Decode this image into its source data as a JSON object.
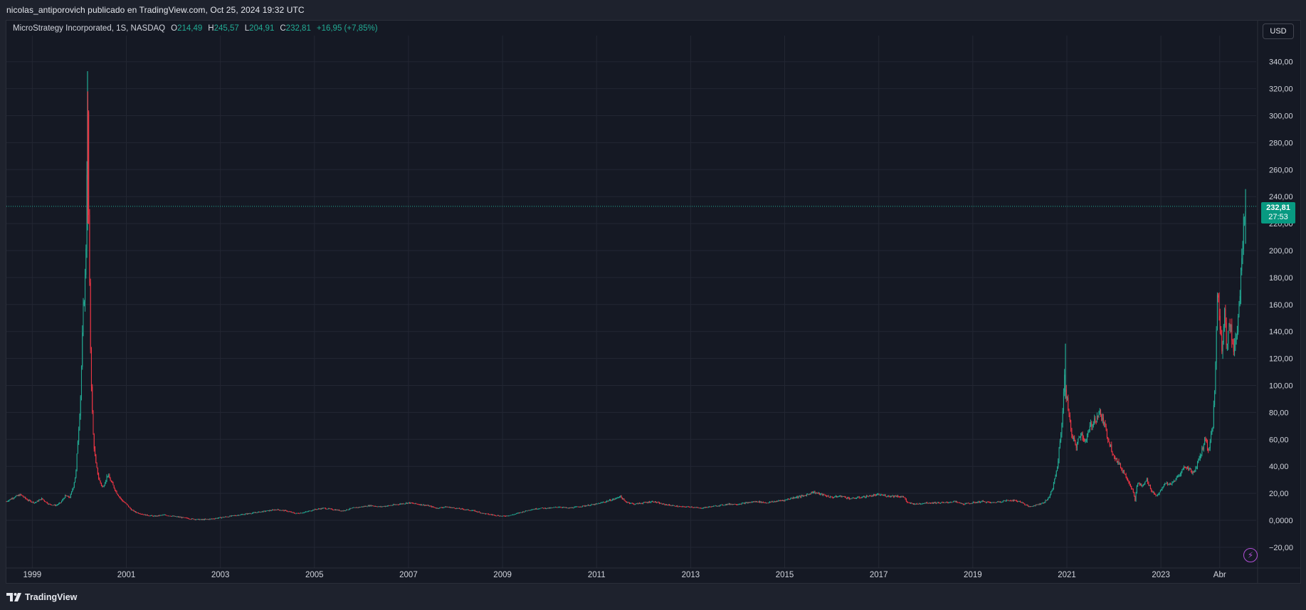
{
  "header": {
    "publish_text": "nicolas_antiporovich publicado en TradingView.com, Oct 25, 2024 19:32 UTC"
  },
  "legend": {
    "symbol": "MicroStrategy Incorporated, 1S, NASDAQ",
    "o_label": "O",
    "o_value": "214,49",
    "h_label": "H",
    "h_value": "245,57",
    "l_label": "L",
    "l_value": "204,91",
    "c_label": "C",
    "c_value": "232,81",
    "change": "+16,95 (+7,85%)"
  },
  "currency_button": "USD",
  "price_badge": {
    "last": "232,81",
    "countdown": "27:53"
  },
  "footer": {
    "brand": "TradingView"
  },
  "colors": {
    "up": "#22ab94",
    "down": "#f23645",
    "background": "#151924",
    "grid": "#232733",
    "axis_text": "#d1d4dc",
    "badge": "#089981",
    "accent_purple": "#b14fd6"
  },
  "icons": {
    "logo": "tradingview-logo-icon",
    "bolt": "lightning-bolt-icon"
  },
  "chart_data": {
    "type": "candlestick",
    "title": "MicroStrategy Incorporated, 1S, NASDAQ",
    "interval": "1S",
    "currency": "USD",
    "last_price": 232.81,
    "y_range": [
      -30,
      360
    ],
    "y_ticks": [
      "340,00",
      "320,00",
      "300,00",
      "280,00",
      "260,00",
      "240,00",
      "220,00",
      "200,00",
      "180,00",
      "160,00",
      "140,00",
      "120,00",
      "100,00",
      "80,00",
      "60,00",
      "40,00",
      "20,00",
      "0,0000",
      "−20,00"
    ],
    "y_tick_values": [
      340,
      320,
      300,
      280,
      260,
      240,
      220,
      200,
      180,
      160,
      140,
      120,
      100,
      80,
      60,
      40,
      20,
      0,
      -20
    ],
    "x_ticks": [
      "1999",
      "2001",
      "2003",
      "2005",
      "2007",
      "2009",
      "2011",
      "2013",
      "2015",
      "2017",
      "2019",
      "2021",
      "2023",
      "Abr"
    ],
    "x_tick_dates": [
      1999.0,
      2001.0,
      2003.0,
      2005.0,
      2007.0,
      2009.0,
      2011.0,
      2013.0,
      2015.0,
      2017.0,
      2019.0,
      2021.0,
      2023.0,
      2024.25
    ],
    "x_range": [
      1998.45,
      2024.95
    ],
    "grid": true,
    "price_path": [
      [
        1998.45,
        14
      ],
      [
        1998.6,
        17
      ],
      [
        1998.75,
        19
      ],
      [
        1998.9,
        15
      ],
      [
        1999.05,
        13
      ],
      [
        1999.2,
        16
      ],
      [
        1999.35,
        12
      ],
      [
        1999.5,
        11
      ],
      [
        1999.6,
        13
      ],
      [
        1999.7,
        18
      ],
      [
        1999.8,
        17
      ],
      [
        1999.88,
        26
      ],
      [
        1999.93,
        36
      ],
      [
        1999.97,
        60
      ],
      [
        2000.0,
        75
      ],
      [
        2000.03,
        95
      ],
      [
        2000.06,
        130
      ],
      [
        2000.09,
        160
      ],
      [
        2000.12,
        175
      ],
      [
        2000.15,
        215
      ],
      [
        2000.175,
        318
      ],
      [
        2000.2,
        225
      ],
      [
        2000.23,
        140
      ],
      [
        2000.27,
        85
      ],
      [
        2000.3,
        60
      ],
      [
        2000.35,
        42
      ],
      [
        2000.42,
        30
      ],
      [
        2000.5,
        24
      ],
      [
        2000.6,
        34
      ],
      [
        2000.7,
        27
      ],
      [
        2000.8,
        20
      ],
      [
        2000.9,
        15
      ],
      [
        2001.0,
        12
      ],
      [
        2001.1,
        8
      ],
      [
        2001.2,
        6
      ],
      [
        2001.4,
        4
      ],
      [
        2001.6,
        3
      ],
      [
        2001.8,
        4
      ],
      [
        2002.0,
        3
      ],
      [
        2002.2,
        2
      ],
      [
        2002.4,
        1
      ],
      [
        2002.6,
        0.5
      ],
      [
        2002.8,
        1
      ],
      [
        2003.0,
        2
      ],
      [
        2003.2,
        3
      ],
      [
        2003.4,
        4
      ],
      [
        2003.6,
        5
      ],
      [
        2003.8,
        6
      ],
      [
        2004.0,
        7
      ],
      [
        2004.2,
        8
      ],
      [
        2004.4,
        7
      ],
      [
        2004.6,
        5
      ],
      [
        2004.8,
        6
      ],
      [
        2005.0,
        8
      ],
      [
        2005.2,
        9
      ],
      [
        2005.4,
        8
      ],
      [
        2005.6,
        7
      ],
      [
        2005.8,
        9
      ],
      [
        2006.0,
        10
      ],
      [
        2006.2,
        11
      ],
      [
        2006.4,
        10
      ],
      [
        2006.6,
        11
      ],
      [
        2006.8,
        12
      ],
      [
        2007.0,
        13
      ],
      [
        2007.2,
        12
      ],
      [
        2007.4,
        11
      ],
      [
        2007.6,
        9
      ],
      [
        2007.8,
        10
      ],
      [
        2008.0,
        9
      ],
      [
        2008.2,
        8
      ],
      [
        2008.4,
        7
      ],
      [
        2008.6,
        5
      ],
      [
        2008.8,
        4
      ],
      [
        2009.0,
        3
      ],
      [
        2009.2,
        4
      ],
      [
        2009.4,
        6
      ],
      [
        2009.6,
        8
      ],
      [
        2009.8,
        9
      ],
      [
        2010.0,
        9
      ],
      [
        2010.2,
        10
      ],
      [
        2010.4,
        9
      ],
      [
        2010.6,
        10
      ],
      [
        2010.8,
        11
      ],
      [
        2011.0,
        12
      ],
      [
        2011.2,
        14
      ],
      [
        2011.4,
        16
      ],
      [
        2011.5,
        18
      ],
      [
        2011.6,
        14
      ],
      [
        2011.8,
        12
      ],
      [
        2012.0,
        13
      ],
      [
        2012.2,
        14
      ],
      [
        2012.4,
        12
      ],
      [
        2012.6,
        11
      ],
      [
        2012.8,
        10
      ],
      [
        2013.0,
        10
      ],
      [
        2013.2,
        9
      ],
      [
        2013.4,
        10
      ],
      [
        2013.6,
        11
      ],
      [
        2013.8,
        12
      ],
      [
        2014.0,
        12
      ],
      [
        2014.2,
        13
      ],
      [
        2014.4,
        14
      ],
      [
        2014.6,
        13
      ],
      [
        2014.8,
        14
      ],
      [
        2015.0,
        15
      ],
      [
        2015.2,
        17
      ],
      [
        2015.4,
        18
      ],
      [
        2015.6,
        21
      ],
      [
        2015.8,
        19
      ],
      [
        2016.0,
        17
      ],
      [
        2016.2,
        18
      ],
      [
        2016.4,
        16
      ],
      [
        2016.6,
        17
      ],
      [
        2016.8,
        18
      ],
      [
        2017.0,
        19
      ],
      [
        2017.2,
        18
      ],
      [
        2017.4,
        18
      ],
      [
        2017.55,
        17
      ],
      [
        2017.6,
        13
      ],
      [
        2017.8,
        12
      ],
      [
        2018.0,
        13
      ],
      [
        2018.2,
        13
      ],
      [
        2018.4,
        13
      ],
      [
        2018.6,
        14
      ],
      [
        2018.8,
        12
      ],
      [
        2019.0,
        13
      ],
      [
        2019.2,
        14
      ],
      [
        2019.4,
        13
      ],
      [
        2019.6,
        14
      ],
      [
        2019.8,
        15
      ],
      [
        2020.0,
        14
      ],
      [
        2020.2,
        10
      ],
      [
        2020.4,
        12
      ],
      [
        2020.5,
        13
      ],
      [
        2020.6,
        16
      ],
      [
        2020.7,
        24
      ],
      [
        2020.8,
        40
      ],
      [
        2020.9,
        75
      ],
      [
        2020.95,
        105
      ],
      [
        2021.0,
        90
      ],
      [
        2021.05,
        78
      ],
      [
        2021.1,
        62
      ],
      [
        2021.2,
        55
      ],
      [
        2021.3,
        65
      ],
      [
        2021.4,
        58
      ],
      [
        2021.5,
        70
      ],
      [
        2021.6,
        75
      ],
      [
        2021.7,
        80
      ],
      [
        2021.8,
        70
      ],
      [
        2021.9,
        58
      ],
      [
        2022.0,
        48
      ],
      [
        2022.1,
        42
      ],
      [
        2022.2,
        36
      ],
      [
        2022.3,
        30
      ],
      [
        2022.4,
        22
      ],
      [
        2022.45,
        15
      ],
      [
        2022.5,
        28
      ],
      [
        2022.6,
        25
      ],
      [
        2022.7,
        30
      ],
      [
        2022.8,
        22
      ],
      [
        2022.9,
        18
      ],
      [
        2023.0,
        22
      ],
      [
        2023.1,
        28
      ],
      [
        2023.2,
        26
      ],
      [
        2023.3,
        30
      ],
      [
        2023.4,
        34
      ],
      [
        2023.5,
        40
      ],
      [
        2023.6,
        38
      ],
      [
        2023.7,
        35
      ],
      [
        2023.8,
        45
      ],
      [
        2023.9,
        55
      ],
      [
        2023.95,
        62
      ],
      [
        2024.0,
        50
      ],
      [
        2024.05,
        60
      ],
      [
        2024.1,
        68
      ],
      [
        2024.15,
        100
      ],
      [
        2024.2,
        170
      ],
      [
        2024.25,
        150
      ],
      [
        2024.3,
        120
      ],
      [
        2024.35,
        160
      ],
      [
        2024.4,
        130
      ],
      [
        2024.45,
        145
      ],
      [
        2024.5,
        140
      ],
      [
        2024.55,
        122
      ],
      [
        2024.6,
        138
      ],
      [
        2024.65,
        150
      ],
      [
        2024.7,
        185
      ],
      [
        2024.75,
        215
      ],
      [
        2024.8,
        232.81
      ]
    ]
  }
}
